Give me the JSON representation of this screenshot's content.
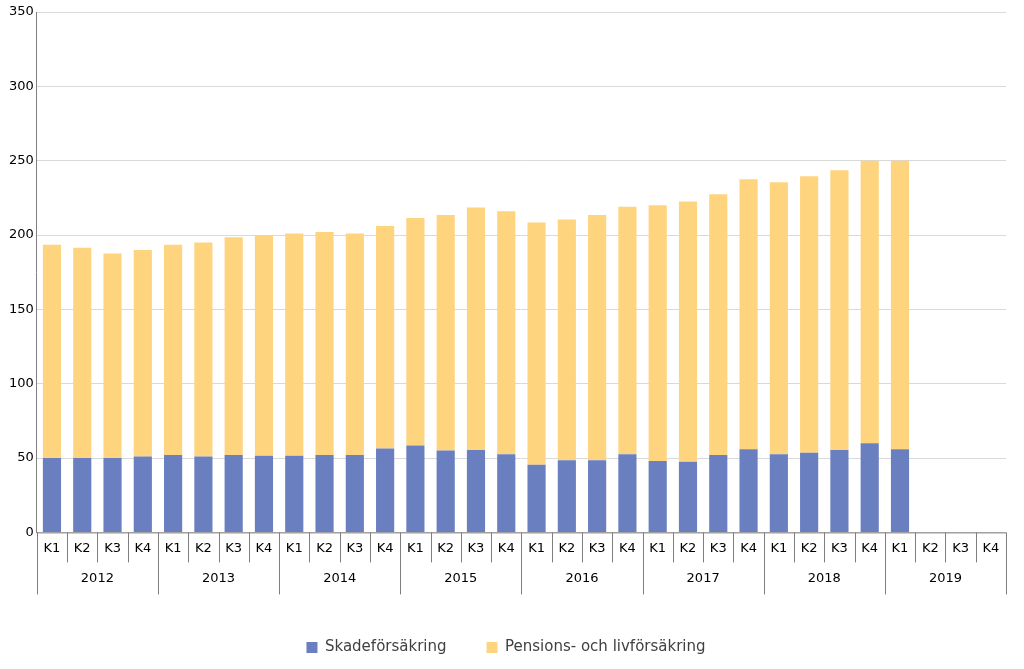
{
  "chart_data": {
    "type": "bar",
    "stacked": true,
    "categories": [
      "K1",
      "K2",
      "K3",
      "K4",
      "K1",
      "K2",
      "K3",
      "K4",
      "K1",
      "K2",
      "K3",
      "K4",
      "K1",
      "K2",
      "K3",
      "K4",
      "K1",
      "K2",
      "K3",
      "K4",
      "K1",
      "K2",
      "K3",
      "K4",
      "K1",
      "K2",
      "K3",
      "K4",
      "K1",
      "K2",
      "K3",
      "K4"
    ],
    "groups": [
      "2012",
      "2013",
      "2014",
      "2015",
      "2016",
      "2017",
      "2018",
      "2019"
    ],
    "series": [
      {
        "name": "Skadeförsäkring",
        "color": "#6a7fc0",
        "values": [
          50,
          50,
          50,
          51,
          52,
          51,
          52,
          51.5,
          51.5,
          52,
          52,
          56.5,
          58.5,
          55,
          55.5,
          52.5,
          45.5,
          48.5,
          48.5,
          52.5,
          48,
          47.5,
          52,
          56,
          52.5,
          53.5,
          55.5,
          60,
          56,
          null,
          null,
          null
        ]
      },
      {
        "name": "Pensions- och livförsäkring",
        "color": "#ffd47f",
        "values": [
          143.5,
          141.5,
          137.5,
          139,
          141.5,
          144,
          146.5,
          148.5,
          149.5,
          150,
          149,
          149.5,
          153,
          158.5,
          163,
          163.5,
          163,
          162,
          165,
          166.5,
          172,
          175,
          175.5,
          181.5,
          183,
          186,
          188,
          190,
          194,
          null,
          null,
          null
        ]
      }
    ],
    "ylim": [
      0,
      350
    ],
    "yticks": [
      0,
      50,
      100,
      150,
      200,
      250,
      300,
      350
    ],
    "grid": true,
    "legend": "bottom"
  }
}
